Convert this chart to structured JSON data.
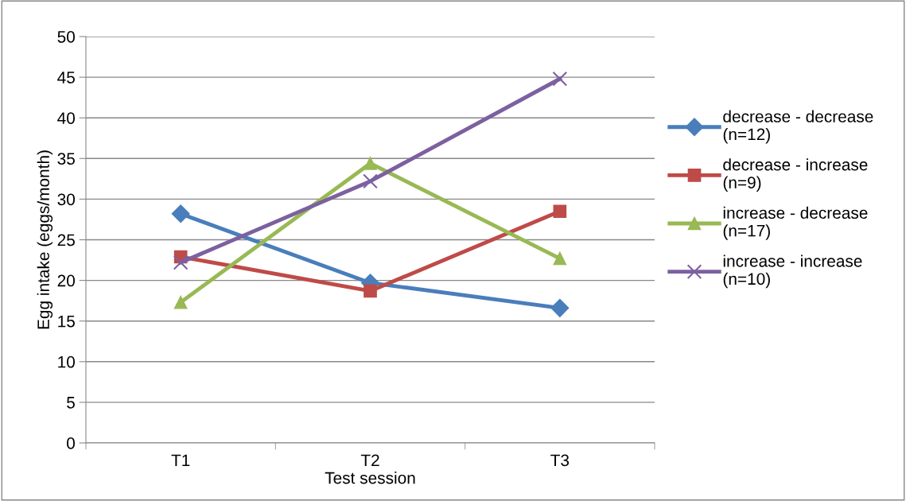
{
  "chart_data": {
    "type": "line",
    "xlabel": "Test session",
    "ylabel": "Egg intake (eggs/month)",
    "categories": [
      "T1",
      "T2",
      "T3"
    ],
    "series": [
      {
        "name": "decrease - decrease\n(n=12)",
        "color": "#4a7ebb",
        "marker": "diamond",
        "values": [
          28.2,
          19.7,
          16.6
        ]
      },
      {
        "name": "decrease - increase\n(n=9)",
        "color": "#be4b48",
        "marker": "square",
        "values": [
          22.9,
          18.7,
          28.5
        ]
      },
      {
        "name": "increase - decrease\n(n=17)",
        "color": "#98b954",
        "marker": "triangle",
        "values": [
          17.3,
          34.4,
          22.7
        ]
      },
      {
        "name": "increase - increase\n(n=10)",
        "color": "#7d60a0",
        "marker": "cross",
        "values": [
          22.2,
          32.2,
          44.8
        ]
      }
    ],
    "ylim": [
      0,
      50
    ],
    "yticks": [
      0,
      5,
      10,
      15,
      20,
      25,
      30,
      35,
      40,
      45,
      50
    ],
    "grid": "y",
    "legend": "right",
    "line_style": "solid"
  }
}
